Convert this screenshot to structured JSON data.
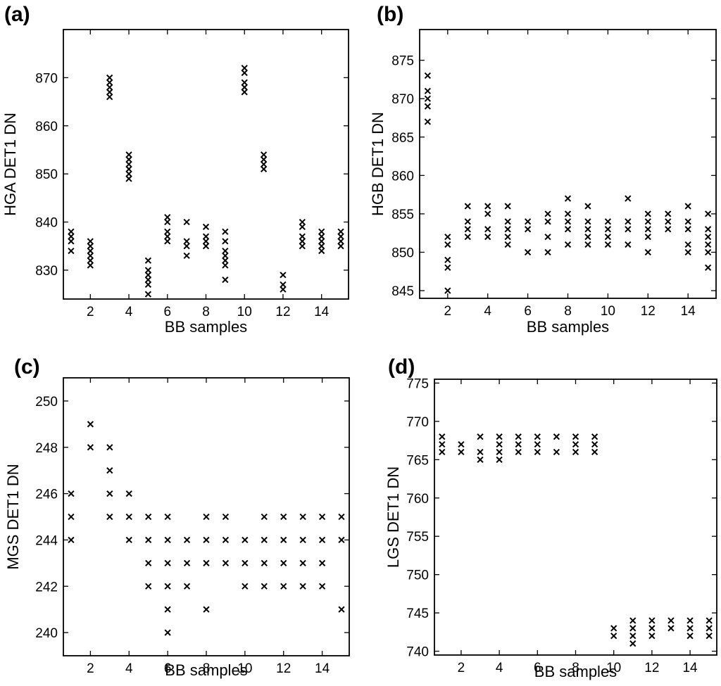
{
  "chart_data": [
    {
      "type": "scatter",
      "panel_label": "(a)",
      "title": "",
      "xlabel": "BB samples",
      "ylabel": "HGA DET1 DN",
      "xlim": [
        0.6,
        15.4
      ],
      "ylim": [
        824,
        880
      ],
      "x_ticks": [
        2,
        4,
        6,
        8,
        10,
        12,
        14
      ],
      "y_ticks": [
        830,
        840,
        850,
        860,
        870
      ],
      "x_tick_labels": [
        "2",
        "4",
        "6",
        "8",
        "10",
        "12",
        "14"
      ],
      "y_tick_labels": [
        "830",
        "840",
        "850",
        "860",
        "870"
      ],
      "mark_color": "#000000",
      "series": [
        {
          "x": 1,
          "values": [
            834,
            836,
            837,
            838
          ]
        },
        {
          "x": 2,
          "values": [
            831,
            832,
            833,
            834,
            835,
            836
          ]
        },
        {
          "x": 3,
          "values": [
            866,
            867,
            868,
            869,
            870
          ]
        },
        {
          "x": 4,
          "values": [
            849,
            850,
            851,
            852,
            853,
            854
          ]
        },
        {
          "x": 5,
          "values": [
            825,
            827,
            828,
            829,
            830,
            832
          ]
        },
        {
          "x": 6,
          "values": [
            836,
            837,
            838,
            840,
            841
          ]
        },
        {
          "x": 7,
          "values": [
            833,
            835,
            836,
            840
          ]
        },
        {
          "x": 8,
          "values": [
            835,
            836,
            837,
            839
          ]
        },
        {
          "x": 9,
          "values": [
            828,
            831,
            832,
            833,
            834,
            836,
            838
          ]
        },
        {
          "x": 10,
          "values": [
            867,
            868,
            869,
            871,
            872
          ]
        },
        {
          "x": 11,
          "values": [
            851,
            852,
            853,
            854
          ]
        },
        {
          "x": 12,
          "values": [
            826,
            827,
            829
          ]
        },
        {
          "x": 13,
          "values": [
            835,
            836,
            837,
            839,
            840
          ]
        },
        {
          "x": 14,
          "values": [
            834,
            835,
            836,
            837,
            838
          ]
        },
        {
          "x": 15,
          "values": [
            835,
            836,
            837,
            838
          ]
        }
      ]
    },
    {
      "type": "scatter",
      "panel_label": "(b)",
      "title": "",
      "xlabel": "BB samples",
      "ylabel": "HGB DET1 DN",
      "xlim": [
        0.6,
        15.4
      ],
      "ylim": [
        844,
        879
      ],
      "x_ticks": [
        2,
        4,
        6,
        8,
        10,
        12,
        14
      ],
      "y_ticks": [
        845,
        850,
        855,
        860,
        865,
        870,
        875
      ],
      "x_tick_labels": [
        "2",
        "4",
        "6",
        "8",
        "10",
        "12",
        "14"
      ],
      "y_tick_labels": [
        "845",
        "850",
        "855",
        "860",
        "865",
        "870",
        "875"
      ],
      "mark_color": "#000000",
      "series": [
        {
          "x": 1,
          "values": [
            867,
            869,
            870,
            871,
            873
          ]
        },
        {
          "x": 2,
          "values": [
            845,
            848,
            849,
            851,
            852
          ]
        },
        {
          "x": 3,
          "values": [
            852,
            853,
            854,
            856
          ]
        },
        {
          "x": 4,
          "values": [
            852,
            853,
            855,
            856
          ]
        },
        {
          "x": 5,
          "values": [
            851,
            852,
            853,
            854,
            856
          ]
        },
        {
          "x": 6,
          "values": [
            850,
            853,
            854
          ]
        },
        {
          "x": 7,
          "values": [
            850,
            852,
            854,
            855
          ]
        },
        {
          "x": 8,
          "values": [
            851,
            853,
            854,
            855,
            857
          ]
        },
        {
          "x": 9,
          "values": [
            851,
            852,
            853,
            854,
            856
          ]
        },
        {
          "x": 10,
          "values": [
            851,
            852,
            853,
            854
          ]
        },
        {
          "x": 11,
          "values": [
            851,
            853,
            854,
            857
          ]
        },
        {
          "x": 12,
          "values": [
            850,
            852,
            853,
            854,
            855
          ]
        },
        {
          "x": 13,
          "values": [
            853,
            854,
            855
          ]
        },
        {
          "x": 14,
          "values": [
            850,
            851,
            853,
            854,
            856
          ]
        },
        {
          "x": 15,
          "values": [
            848,
            850,
            851,
            852,
            853,
            855
          ]
        }
      ]
    },
    {
      "type": "scatter",
      "panel_label": "(c)",
      "title": "",
      "xlabel": "BB samples",
      "ylabel": "MGS DET1 DN",
      "xlim": [
        0.6,
        15.4
      ],
      "ylim": [
        239,
        251
      ],
      "x_ticks": [
        2,
        4,
        6,
        8,
        10,
        12,
        14
      ],
      "y_ticks": [
        240,
        242,
        244,
        246,
        248,
        250
      ],
      "x_tick_labels": [
        "2",
        "4",
        "6",
        "8",
        "10",
        "12",
        "14"
      ],
      "y_tick_labels": [
        "240",
        "242",
        "244",
        "246",
        "248",
        "250"
      ],
      "mark_color": "#000000",
      "series": [
        {
          "x": 1,
          "values": [
            244,
            245,
            246
          ]
        },
        {
          "x": 2,
          "values": [
            248,
            249
          ]
        },
        {
          "x": 3,
          "values": [
            245,
            246,
            247,
            248
          ]
        },
        {
          "x": 4,
          "values": [
            244,
            245,
            246
          ]
        },
        {
          "x": 5,
          "values": [
            242,
            243,
            244,
            245
          ]
        },
        {
          "x": 6,
          "values": [
            240,
            241,
            242,
            243,
            244,
            245
          ]
        },
        {
          "x": 7,
          "values": [
            242,
            243,
            244
          ]
        },
        {
          "x": 8,
          "values": [
            241,
            243,
            244,
            245
          ]
        },
        {
          "x": 9,
          "values": [
            243,
            244,
            245
          ]
        },
        {
          "x": 10,
          "values": [
            242,
            243,
            244
          ]
        },
        {
          "x": 11,
          "values": [
            242,
            243,
            244,
            245
          ]
        },
        {
          "x": 12,
          "values": [
            242,
            243,
            244,
            245
          ]
        },
        {
          "x": 13,
          "values": [
            242,
            243,
            244,
            245
          ]
        },
        {
          "x": 14,
          "values": [
            242,
            243,
            244,
            245
          ]
        },
        {
          "x": 15,
          "values": [
            241,
            244,
            245
          ]
        }
      ]
    },
    {
      "type": "scatter",
      "panel_label": "(d)",
      "title": "",
      "xlabel": "BB samples",
      "ylabel": "LGS DET1 DN",
      "xlim": [
        0.6,
        15.4
      ],
      "ylim": [
        739.5,
        775.5
      ],
      "x_ticks": [
        2,
        4,
        6,
        8,
        10,
        12,
        14
      ],
      "y_ticks": [
        740,
        745,
        750,
        755,
        760,
        765,
        770,
        775
      ],
      "x_tick_labels": [
        "2",
        "4",
        "6",
        "8",
        "10",
        "12",
        "14"
      ],
      "y_tick_labels": [
        "740",
        "745",
        "750",
        "755",
        "760",
        "765",
        "770",
        "775"
      ],
      "mark_color": "#000000",
      "series": [
        {
          "x": 1,
          "values": [
            766,
            767,
            768
          ]
        },
        {
          "x": 2,
          "values": [
            766,
            767
          ]
        },
        {
          "x": 3,
          "values": [
            765,
            766,
            768
          ]
        },
        {
          "x": 4,
          "values": [
            765,
            766,
            767,
            768
          ]
        },
        {
          "x": 5,
          "values": [
            766,
            767,
            768
          ]
        },
        {
          "x": 6,
          "values": [
            766,
            767,
            768
          ]
        },
        {
          "x": 7,
          "values": [
            766,
            768
          ]
        },
        {
          "x": 8,
          "values": [
            766,
            767,
            768
          ]
        },
        {
          "x": 9,
          "values": [
            766,
            767,
            768
          ]
        },
        {
          "x": 10,
          "values": [
            742,
            743
          ]
        },
        {
          "x": 11,
          "values": [
            741,
            742,
            743,
            744
          ]
        },
        {
          "x": 12,
          "values": [
            742,
            743,
            744
          ]
        },
        {
          "x": 13,
          "values": [
            743,
            744
          ]
        },
        {
          "x": 14,
          "values": [
            742,
            743,
            744
          ]
        },
        {
          "x": 15,
          "values": [
            742,
            743,
            744
          ]
        }
      ]
    }
  ]
}
